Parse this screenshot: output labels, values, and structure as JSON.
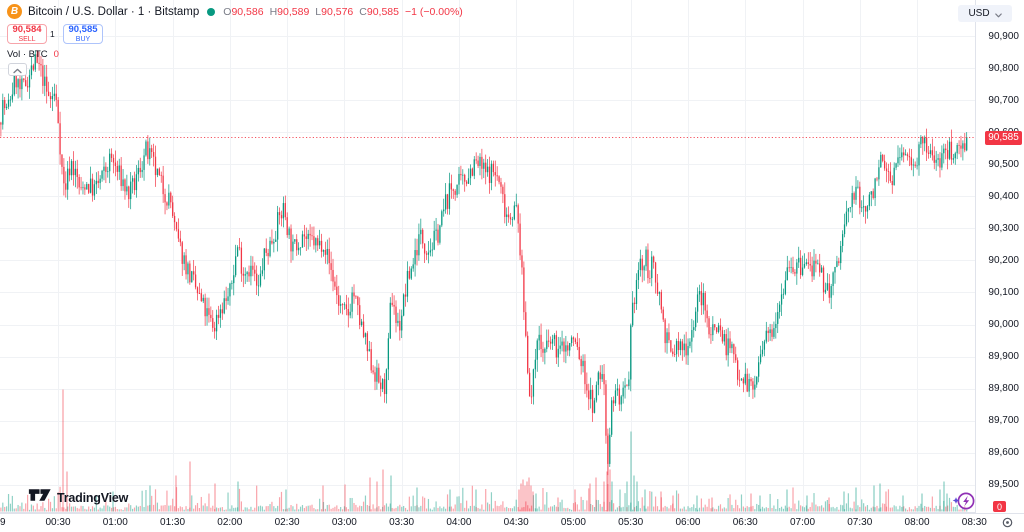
{
  "header": {
    "bitcoin_icon_glyph": "B",
    "symbol_title": "Bitcoin / U.S. Dollar · 1 · Bitstamp",
    "ohlc": {
      "o_label": "O",
      "o": "90,586",
      "h_label": "H",
      "h": "90,589",
      "l_label": "L",
      "l": "90,576",
      "c_label": "C",
      "c": "90,585",
      "change": "−1 (−0.00%)"
    },
    "sell": {
      "price": "90,584",
      "label": "SELL"
    },
    "buy": {
      "price": "90,585",
      "label": "BUY"
    },
    "spread": "1",
    "volume_legend": {
      "label": "Vol · BTC",
      "value": "0"
    }
  },
  "footer": {
    "logo_text": "TradingView"
  },
  "price_axis": {
    "currency": "USD",
    "labels": [
      "90,900",
      "90,800",
      "90,700",
      "90,600",
      "90,500",
      "90,400",
      "90,300",
      "90,200",
      "90,100",
      "90,000",
      "89,900",
      "89,800",
      "89,700",
      "89,600",
      "89,500"
    ],
    "current_price": "90,585",
    "volume_badge": "0"
  },
  "time_axis": {
    "partial_left_label": "9",
    "labels": [
      "00:30",
      "01:00",
      "01:30",
      "02:00",
      "02:30",
      "03:00",
      "03:30",
      "04:00",
      "04:30",
      "05:00",
      "05:30",
      "06:00",
      "06:30",
      "07:00",
      "07:30",
      "08:00",
      "08:30"
    ]
  },
  "colors": {
    "up": "#089981",
    "down": "#F23645",
    "vol_up": "rgba(8,153,129,0.45)",
    "vol_down": "rgba(242,54,69,0.45)",
    "grid": "#F0F2F5",
    "axis_border": "#E0E3EB",
    "price_line": "rgba(242,54,69,0.85)",
    "accent_blue": "#2962FF",
    "btc_orange": "#F7931A"
  },
  "chart_data": {
    "type": "candlestick",
    "symbol": "BTCUSD",
    "exchange": "Bitstamp",
    "interval": "1 minute",
    "title": "Bitcoin / U.S. Dollar · 1 · Bitstamp",
    "current_bar": {
      "open": 90586,
      "high": 90589,
      "low": 90576,
      "close": 90585,
      "change": -1,
      "change_pct": "-0.00%"
    },
    "sell_price": 90584,
    "buy_price": 90585,
    "spread": 1,
    "current_price": 90585,
    "price_axis_range": [
      89500,
      90900
    ],
    "price_grid_step": 100,
    "time_range_visible": [
      "00:00",
      "08:30"
    ],
    "session_low": 89560,
    "session_high": 90822,
    "price_path": [
      [
        0,
        90630
      ],
      [
        4,
        90690
      ],
      [
        8,
        90660
      ],
      [
        12,
        90720
      ],
      [
        17,
        90765
      ],
      [
        21,
        90730
      ],
      [
        25,
        90740
      ],
      [
        30,
        90780
      ],
      [
        36,
        90815
      ],
      [
        40,
        90800
      ],
      [
        44,
        90770
      ],
      [
        48,
        90715
      ],
      [
        52,
        90700
      ],
      [
        55,
        90720
      ],
      [
        58,
        90680
      ],
      [
        60,
        90610
      ],
      [
        62,
        90520
      ],
      [
        64,
        90440
      ],
      [
        66,
        90425
      ],
      [
        69,
        90470
      ],
      [
        72,
        90510
      ],
      [
        75,
        90480
      ],
      [
        78,
        90455
      ],
      [
        82,
        90405
      ],
      [
        86,
        90445
      ],
      [
        91,
        90430
      ],
      [
        96,
        90420
      ],
      [
        101,
        90450
      ],
      [
        106,
        90475
      ],
      [
        112,
        90520
      ],
      [
        118,
        90478
      ],
      [
        124,
        90445
      ],
      [
        129,
        90405
      ],
      [
        135,
        90430
      ],
      [
        141,
        90490
      ],
      [
        147,
        90540
      ],
      [
        152,
        90515
      ],
      [
        158,
        90465
      ],
      [
        163,
        90430
      ],
      [
        168,
        90400
      ],
      [
        172,
        90380
      ],
      [
        176,
        90290
      ],
      [
        181,
        90235
      ],
      [
        186,
        90195
      ],
      [
        192,
        90145
      ],
      [
        198,
        90100
      ],
      [
        204,
        90055
      ],
      [
        210,
        90015
      ],
      [
        215,
        89990
      ],
      [
        220,
        90045
      ],
      [
        226,
        90075
      ],
      [
        231,
        90095
      ],
      [
        236,
        90200
      ],
      [
        239,
        90250
      ],
      [
        244,
        90165
      ],
      [
        249,
        90180
      ],
      [
        254,
        90165
      ],
      [
        259,
        90095
      ],
      [
        264,
        90200
      ],
      [
        269,
        90235
      ],
      [
        274,
        90275
      ],
      [
        280,
        90330
      ],
      [
        285,
        90365
      ],
      [
        289,
        90295
      ],
      [
        294,
        90230
      ],
      [
        299,
        90260
      ],
      [
        304,
        90290
      ],
      [
        309,
        90250
      ],
      [
        314,
        90265
      ],
      [
        319,
        90240
      ],
      [
        324,
        90270
      ],
      [
        329,
        90205
      ],
      [
        334,
        90145
      ],
      [
        339,
        90075
      ],
      [
        344,
        90035
      ],
      [
        349,
        90030
      ],
      [
        354,
        90110
      ],
      [
        358,
        90045
      ],
      [
        362,
        89995
      ],
      [
        366,
        89945
      ],
      [
        370,
        89895
      ],
      [
        374,
        89865
      ],
      [
        379,
        89825
      ],
      [
        384,
        89800
      ],
      [
        388,
        89835
      ],
      [
        391,
        90040
      ],
      [
        394,
        90095
      ],
      [
        397,
        90010
      ],
      [
        400,
        89990
      ],
      [
        404,
        90060
      ],
      [
        408,
        90130
      ],
      [
        413,
        90185
      ],
      [
        417,
        90235
      ],
      [
        421,
        90280
      ],
      [
        426,
        90250
      ],
      [
        431,
        90240
      ],
      [
        437,
        90270
      ],
      [
        442,
        90320
      ],
      [
        447,
        90385
      ],
      [
        452,
        90420
      ],
      [
        458,
        90432
      ],
      [
        464,
        90443
      ],
      [
        470,
        90478
      ],
      [
        476,
        90502
      ],
      [
        482,
        90492
      ],
      [
        487,
        90468
      ],
      [
        492,
        90480
      ],
      [
        497,
        90470
      ],
      [
        501,
        90430
      ],
      [
        505,
        90375
      ],
      [
        509,
        90340
      ],
      [
        513,
        90355
      ],
      [
        517,
        90358
      ],
      [
        520,
        90290
      ],
      [
        523,
        90140
      ],
      [
        526,
        89995
      ],
      [
        529,
        89860
      ],
      [
        532,
        89755
      ],
      [
        535,
        89845
      ],
      [
        538,
        89985
      ],
      [
        541,
        89935
      ],
      [
        545,
        89910
      ],
      [
        549,
        89930
      ],
      [
        553,
        89950
      ],
      [
        557,
        89928
      ],
      [
        561,
        89915
      ],
      [
        565,
        89940
      ],
      [
        569,
        89920
      ],
      [
        573,
        89955
      ],
      [
        577,
        89940
      ],
      [
        580,
        89900
      ],
      [
        585,
        89850
      ],
      [
        589,
        89790
      ],
      [
        593,
        89755
      ],
      [
        596,
        89740
      ],
      [
        599,
        89850
      ],
      [
        602,
        89840
      ],
      [
        605,
        89820
      ],
      [
        607,
        89660
      ],
      [
        609,
        89590
      ],
      [
        611,
        89680
      ],
      [
        613,
        89760
      ],
      [
        616,
        89795
      ],
      [
        619,
        89780
      ],
      [
        622,
        89760
      ],
      [
        625,
        89775
      ],
      [
        628,
        89790
      ],
      [
        630,
        89800
      ],
      [
        632,
        89990
      ],
      [
        635,
        90080
      ],
      [
        638,
        90150
      ],
      [
        641,
        90190
      ],
      [
        644,
        90170
      ],
      [
        647,
        90200
      ],
      [
        650,
        90160
      ],
      [
        653,
        90180
      ],
      [
        656,
        90150
      ],
      [
        659,
        90120
      ],
      [
        662,
        90060
      ],
      [
        665,
        89990
      ],
      [
        668,
        89950
      ],
      [
        671,
        89910
      ],
      [
        673,
        89900
      ],
      [
        676,
        89925
      ],
      [
        679,
        89935
      ],
      [
        682,
        89920
      ],
      [
        685,
        89930
      ],
      [
        688,
        89940
      ],
      [
        691,
        89960
      ],
      [
        694,
        90000
      ],
      [
        697,
        90050
      ],
      [
        700,
        90090
      ],
      [
        703,
        90085
      ],
      [
        706,
        90040
      ],
      [
        709,
        89998
      ],
      [
        712,
        89985
      ],
      [
        715,
        89992
      ],
      [
        718,
        90002
      ],
      [
        721,
        89985
      ],
      [
        724,
        89958
      ],
      [
        727,
        89938
      ],
      [
        730,
        89928
      ],
      [
        733,
        89918
      ],
      [
        736,
        89888
      ],
      [
        739,
        89858
      ],
      [
        742,
        89848
      ],
      [
        745,
        89838
      ],
      [
        748,
        89818
      ],
      [
        751,
        89808
      ],
      [
        754,
        89798
      ],
      [
        757,
        89832
      ],
      [
        760,
        89872
      ],
      [
        763,
        89912
      ],
      [
        766,
        89942
      ],
      [
        769,
        89962
      ],
      [
        772,
        89982
      ],
      [
        775,
        90012
      ],
      [
        778,
        90052
      ],
      [
        781,
        90092
      ],
      [
        784,
        90122
      ],
      [
        787,
        90162
      ],
      [
        790,
        90205
      ],
      [
        793,
        90188
      ],
      [
        796,
        90168
      ],
      [
        799,
        90182
      ],
      [
        802,
        90172
      ],
      [
        805,
        90182
      ],
      [
        808,
        90192
      ],
      [
        811,
        90172
      ],
      [
        814,
        90182
      ],
      [
        817,
        90162
      ],
      [
        820,
        90152
      ],
      [
        823,
        90142
      ],
      [
        826,
        90122
      ],
      [
        829,
        90108
      ],
      [
        832,
        90110
      ],
      [
        835,
        90152
      ],
      [
        838,
        90182
      ],
      [
        841,
        90232
      ],
      [
        844,
        90282
      ],
      [
        847,
        90332
      ],
      [
        850,
        90362
      ],
      [
        853,
        90392
      ],
      [
        856,
        90422
      ],
      [
        859,
        90398
      ],
      [
        862,
        90362
      ],
      [
        865,
        90367
      ],
      [
        868,
        90372
      ],
      [
        871,
        90382
      ],
      [
        874,
        90422
      ],
      [
        877,
        90472
      ],
      [
        880,
        90502
      ],
      [
        883,
        90490
      ],
      [
        886,
        90478
      ],
      [
        889,
        90468
      ],
      [
        892,
        90460
      ],
      [
        895,
        90480
      ],
      [
        898,
        90500
      ],
      [
        901,
        90520
      ],
      [
        904,
        90537
      ],
      [
        907,
        90528
      ],
      [
        910,
        90518
      ],
      [
        913,
        90514
      ],
      [
        916,
        90520
      ],
      [
        919,
        90532
      ],
      [
        922,
        90552
      ],
      [
        925,
        90562
      ],
      [
        928,
        90540
      ],
      [
        931,
        90528
      ],
      [
        934,
        90518
      ],
      [
        937,
        90530
      ],
      [
        940,
        90512
      ],
      [
        943,
        90522
      ],
      [
        946,
        90532
      ],
      [
        949,
        90542
      ],
      [
        952,
        90545
      ],
      [
        955,
        90540
      ],
      [
        958,
        90552
      ],
      [
        961,
        90562
      ],
      [
        964,
        90572
      ],
      [
        968,
        90585
      ]
    ],
    "volume_spikes": [
      [
        63,
        122,
        "d"
      ],
      [
        67,
        40,
        "d"
      ],
      [
        113,
        20,
        "u"
      ],
      [
        150,
        26,
        "u"
      ],
      [
        176,
        36,
        "d"
      ],
      [
        190,
        50,
        "d"
      ],
      [
        215,
        28,
        "d"
      ],
      [
        238,
        30,
        "u"
      ],
      [
        286,
        22,
        "u"
      ],
      [
        323,
        26,
        "d"
      ],
      [
        345,
        27,
        "d"
      ],
      [
        370,
        34,
        "d"
      ],
      [
        377,
        30,
        "d"
      ],
      [
        383,
        42,
        "d"
      ],
      [
        391,
        36,
        "u"
      ],
      [
        417,
        24,
        "u"
      ],
      [
        450,
        22,
        "u"
      ],
      [
        476,
        22,
        "u"
      ],
      [
        519,
        22,
        "d"
      ],
      [
        521,
        28,
        "d"
      ],
      [
        523,
        32,
        "d"
      ],
      [
        525,
        26,
        "d"
      ],
      [
        527,
        30,
        "d"
      ],
      [
        529,
        34,
        "d"
      ],
      [
        531,
        26,
        "d"
      ],
      [
        533,
        20,
        "d"
      ],
      [
        536,
        18,
        "u"
      ],
      [
        558,
        14,
        "d"
      ],
      [
        575,
        22,
        "d"
      ],
      [
        590,
        28,
        "d"
      ],
      [
        596,
        34,
        "d"
      ],
      [
        604,
        30,
        "d"
      ],
      [
        607,
        40,
        "d"
      ],
      [
        608,
        78,
        "d"
      ],
      [
        610,
        42,
        "d"
      ],
      [
        612,
        30,
        "u"
      ],
      [
        620,
        22,
        "u"
      ],
      [
        627,
        30,
        "u"
      ],
      [
        631,
        80,
        "u"
      ],
      [
        634,
        36,
        "u"
      ],
      [
        637,
        30,
        "u"
      ],
      [
        645,
        22,
        "u"
      ],
      [
        661,
        20,
        "d"
      ],
      [
        673,
        16,
        "d"
      ],
      [
        697,
        16,
        "u"
      ],
      [
        712,
        14,
        "d"
      ],
      [
        751,
        18,
        "d"
      ],
      [
        760,
        16,
        "u"
      ],
      [
        787,
        22,
        "u"
      ],
      [
        807,
        16,
        "u"
      ],
      [
        829,
        14,
        "d"
      ],
      [
        844,
        20,
        "u"
      ],
      [
        856,
        24,
        "u"
      ],
      [
        874,
        26,
        "u"
      ],
      [
        880,
        28,
        "u"
      ],
      [
        886,
        20,
        "d"
      ],
      [
        903,
        16,
        "u"
      ],
      [
        922,
        18,
        "u"
      ],
      [
        940,
        22,
        "u"
      ],
      [
        944,
        30,
        "u"
      ],
      [
        947,
        18,
        "u"
      ]
    ]
  }
}
